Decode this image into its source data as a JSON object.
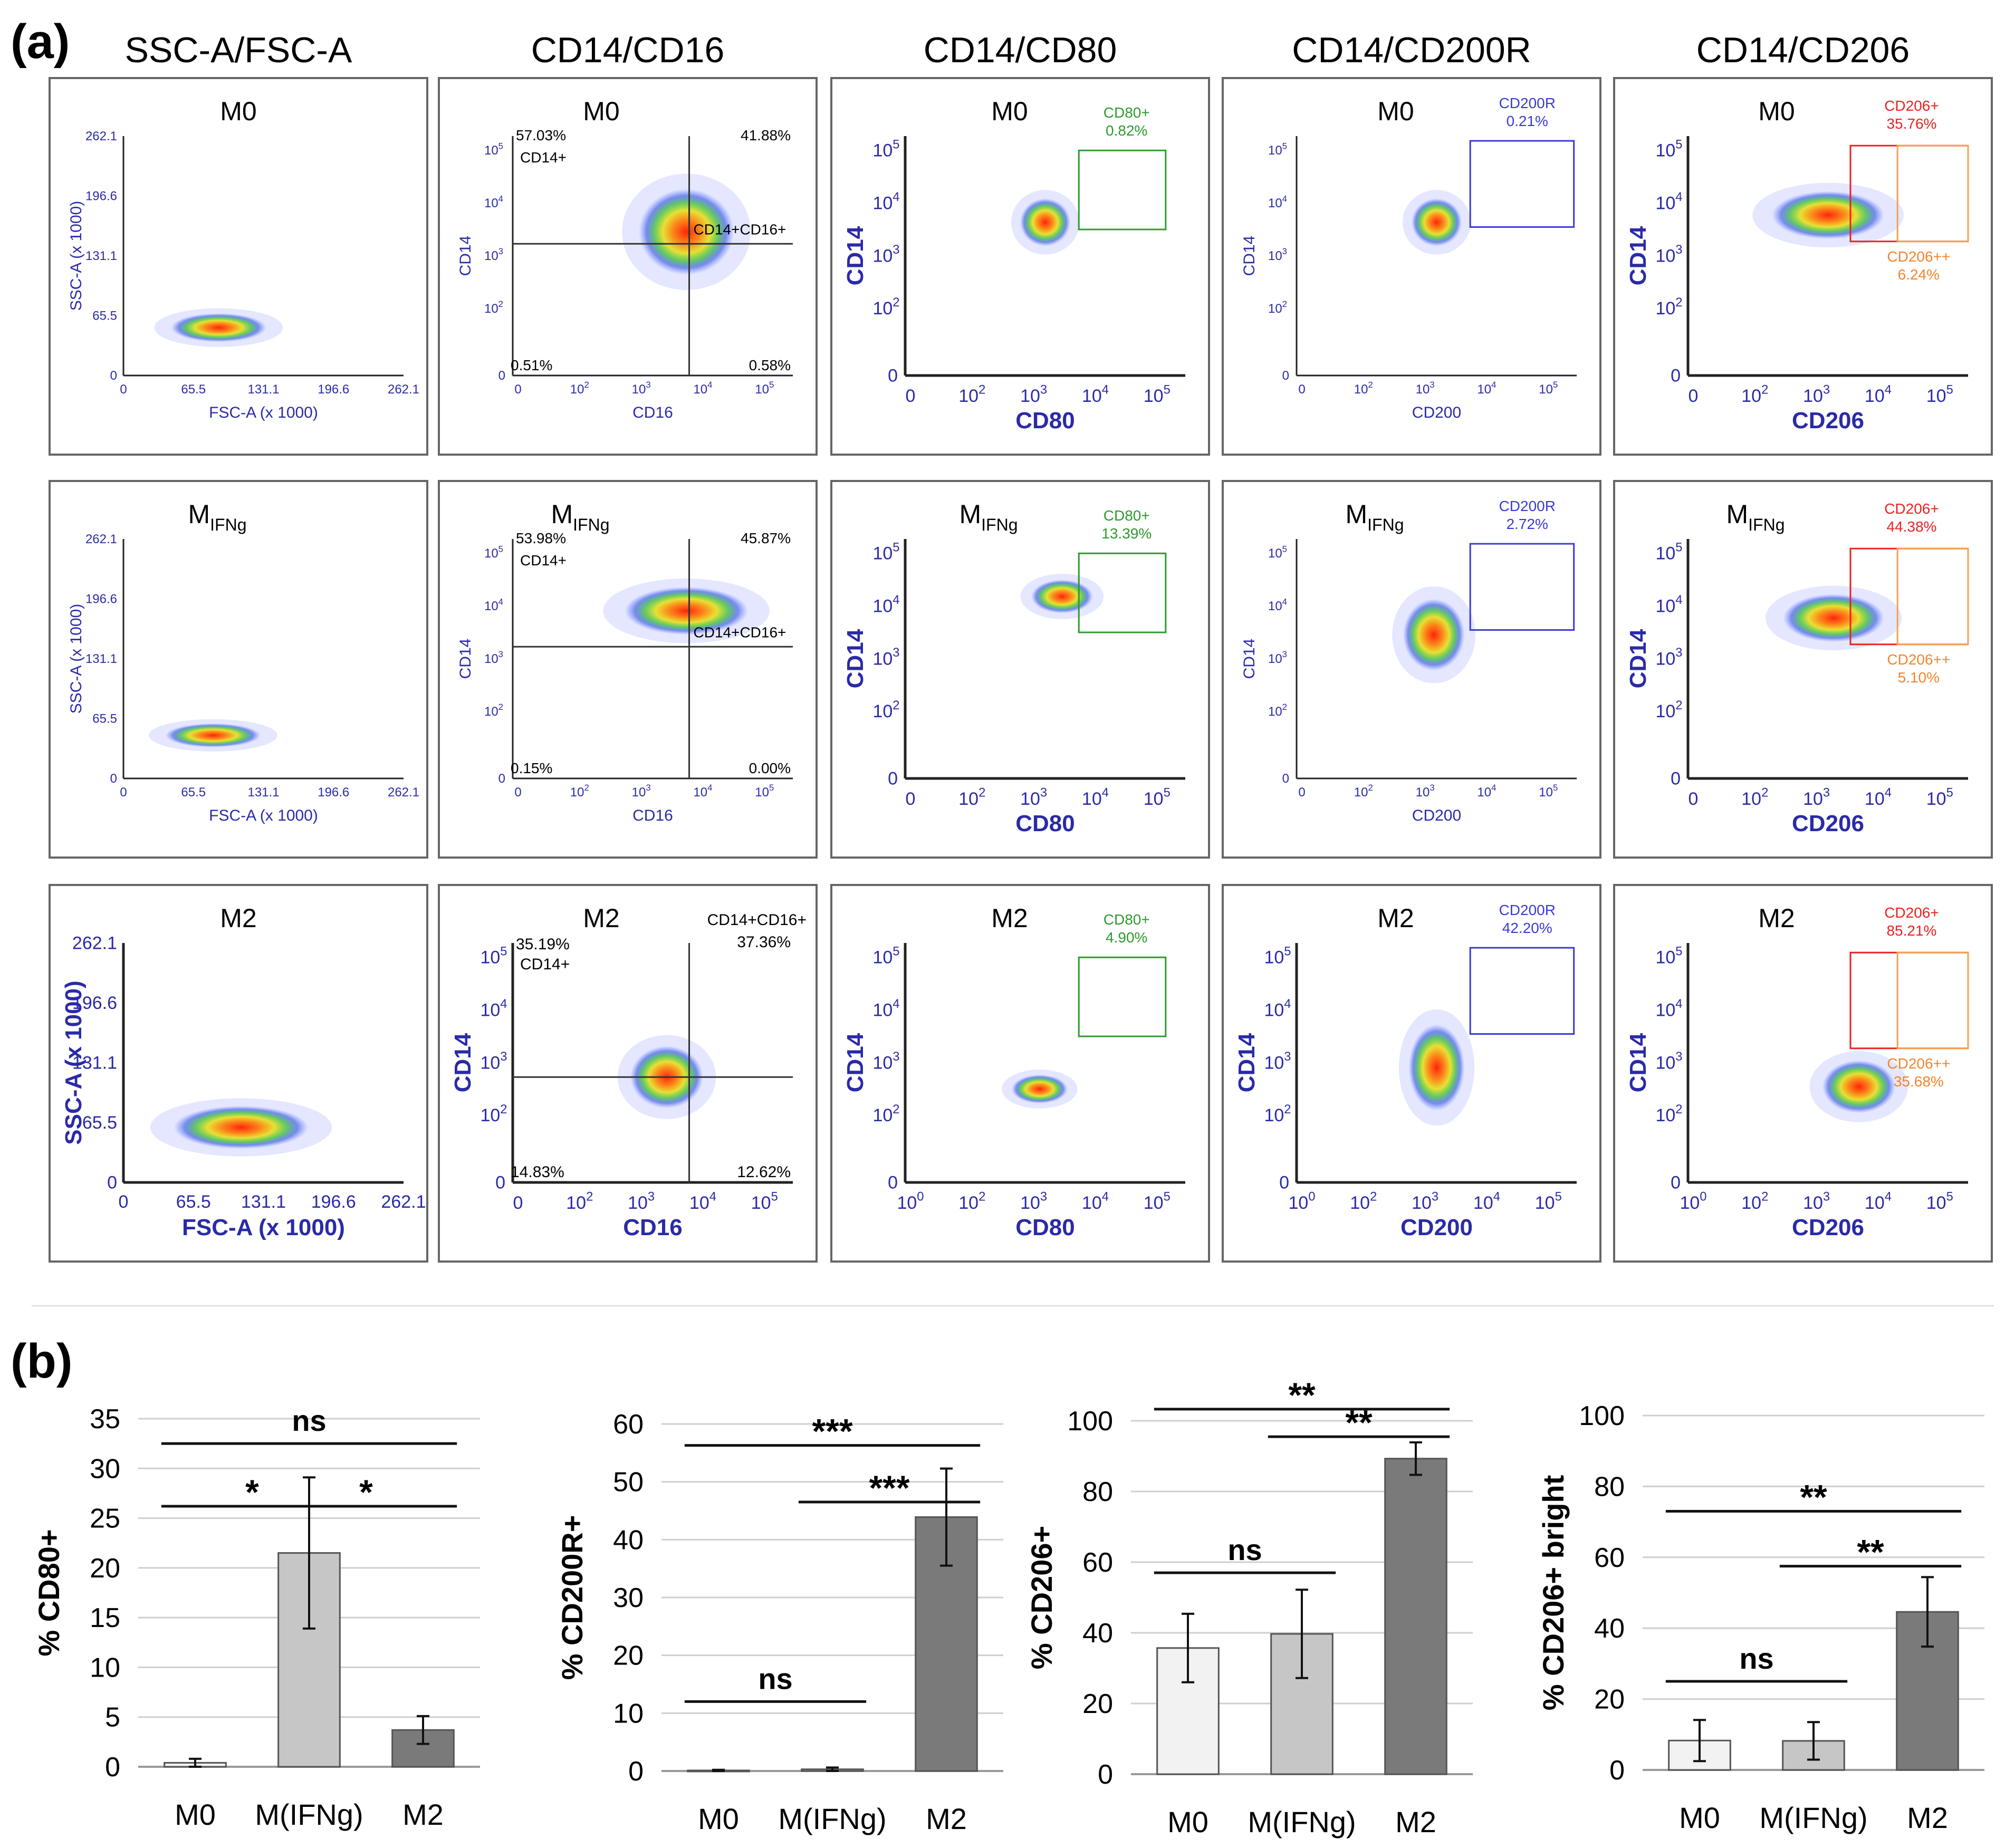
{
  "figure": {
    "panel_a_label": "(a)",
    "panel_b_label": "(b)",
    "columns": [
      "SSC-A/FSC-A",
      "CD14/CD16",
      "CD14/CD80",
      "CD14/CD200R",
      "CD14/CD206"
    ],
    "rows": [
      {
        "title": "M0",
        "sub": ""
      },
      {
        "title": "M",
        "sub": "IFNg"
      },
      {
        "title": "M2",
        "sub": ""
      }
    ],
    "scatter_cells": [
      [
        {
          "type": "fsc",
          "bold": false,
          "xlabel": "FSC-A (x 1000)",
          "ylabel": "SSC-A (x 1000)",
          "ticks": [
            "0",
            "65.5",
            "131.1",
            "196.6",
            "262.1"
          ],
          "ytop": "262.1"
        },
        {
          "type": "cd16",
          "bold": false,
          "xlabel": "CD16",
          "ylabel": "CD14",
          "q_ul": "57.03%",
          "q_ul_name": "CD14+",
          "q_ur": "41.88%",
          "q_mid": "CD14+CD16+",
          "q_ll": "0.51%",
          "q_lr": "0.58%"
        },
        {
          "type": "gate",
          "bold": true,
          "xlabel": "CD80",
          "ylabel": "CD14",
          "gate_name": "CD80+",
          "gate_pct": "0.82%",
          "color": "#2e9a2e"
        },
        {
          "type": "gate",
          "bold": false,
          "xlabel": "CD200",
          "ylabel": "CD14",
          "gate_name": "CD200R",
          "gate_pct": "0.21%",
          "color": "#3a3ad8"
        },
        {
          "type": "cd206",
          "bold": true,
          "xlabel": "CD206",
          "ylabel": "CD14",
          "g1_name": "CD206+",
          "g1_pct": "35.76%",
          "g2_name": "CD206++",
          "g2_pct": "6.24%"
        }
      ],
      [
        {
          "type": "fsc",
          "bold": false,
          "xlabel": "FSC-A (x 1000)",
          "ylabel": "SSC-A (x 1000)",
          "ticks": [
            "0",
            "65.5",
            "131.1",
            "196.6",
            "262.1"
          ],
          "ytop": "262.1"
        },
        {
          "type": "cd16",
          "bold": false,
          "xlabel": "CD16",
          "ylabel": "CD14",
          "q_ul": "53.98%",
          "q_ul_name": "CD14+",
          "q_ur": "45.87%",
          "q_mid": "CD14+CD16+",
          "q_ll": "0.15%",
          "q_lr": "0.00%"
        },
        {
          "type": "gate",
          "bold": true,
          "xlabel": "CD80",
          "ylabel": "CD14",
          "gate_name": "CD80+",
          "gate_pct": "13.39%",
          "color": "#2e9a2e"
        },
        {
          "type": "gate",
          "bold": false,
          "xlabel": "CD200",
          "ylabel": "CD14",
          "gate_name": "CD200R",
          "gate_pct": "2.72%",
          "color": "#3a3ad8"
        },
        {
          "type": "cd206",
          "bold": true,
          "xlabel": "CD206",
          "ylabel": "CD14",
          "g1_name": "CD206+",
          "g1_pct": "44.38%",
          "g2_name": "CD206++",
          "g2_pct": "5.10%"
        }
      ],
      [
        {
          "type": "fsc",
          "bold": true,
          "xlabel": "FSC-A (x 1000)",
          "ylabel": "SSC-A (x 1000)",
          "ticks": [
            "0",
            "65.5",
            "131.1",
            "196.6",
            "262.1"
          ],
          "ytop": "262.1"
        },
        {
          "type": "cd16",
          "bold": true,
          "xlabel": "CD16",
          "ylabel": "CD14",
          "q_ul": "35.19%",
          "q_ul_name": "CD14+",
          "q_ur": "37.36%",
          "q_mid": "CD14+CD16+",
          "q_ll": "14.83%",
          "q_lr": "12.62%"
        },
        {
          "type": "gate",
          "bold": true,
          "xlabel": "CD80",
          "ylabel": "CD14",
          "gate_name": "CD80+",
          "gate_pct": "4.90%",
          "color": "#2e9a2e"
        },
        {
          "type": "gate",
          "bold": true,
          "xlabel": "CD200",
          "ylabel": "CD14",
          "gate_name": "CD200R",
          "gate_pct": "42.20%",
          "color": "#3a3ad8"
        },
        {
          "type": "cd206",
          "bold": true,
          "xlabel": "CD206",
          "ylabel": "CD14",
          "g1_name": "CD206+",
          "g1_pct": "85.21%",
          "g2_name": "CD206++",
          "g2_pct": "35.68%"
        }
      ]
    ],
    "log_ticks": {
      "base": "10",
      "exps": [
        "2",
        "3",
        "4",
        "5"
      ],
      "zero": "0",
      "first_m2": "10",
      "first_m2_exp": "0"
    }
  },
  "chart_data": [
    {
      "type": "bar",
      "categories": [
        "M0",
        "M(IFNg)",
        "M2"
      ],
      "values": [
        0.4,
        21.5,
        3.7
      ],
      "errors": [
        0.4,
        7.6,
        1.4
      ],
      "ylabel": "% CD80+",
      "ylim": [
        0,
        35
      ],
      "yticks": [
        "0",
        "5",
        "10",
        "15",
        "20",
        "25",
        "30",
        "35"
      ],
      "colors": [
        "#f2f2f2",
        "#c6c6c6",
        "#7a7a7a"
      ],
      "brackets": [
        {
          "from": 0,
          "to": 2,
          "label": "ns",
          "y": 32.5
        },
        {
          "from": 0,
          "to": 1,
          "label": "*",
          "y": 26.2
        },
        {
          "from": 1,
          "to": 2,
          "label": "*",
          "y": 26.2
        }
      ]
    },
    {
      "type": "bar",
      "categories": [
        "M0",
        "M(IFNg)",
        "M2"
      ],
      "values": [
        0.1,
        0.3,
        43.9
      ],
      "errors": [
        0.1,
        0.3,
        8.4
      ],
      "ylabel": "% CD200R+",
      "ylim": [
        0,
        60
      ],
      "yticks": [
        "0",
        "10",
        "20",
        "30",
        "40",
        "50",
        "60"
      ],
      "colors": [
        "#f2f2f2",
        "#c6c6c6",
        "#7a7a7a"
      ],
      "brackets": [
        {
          "from": 0,
          "to": 2,
          "label": "***",
          "y": 56.3
        },
        {
          "from": 1,
          "to": 2,
          "label": "***",
          "y": 46.5
        },
        {
          "from": 0,
          "to": 1,
          "label": "ns",
          "y": 12.0
        }
      ]
    },
    {
      "type": "bar",
      "categories": [
        "M0",
        "M(IFNg)",
        "M2"
      ],
      "values": [
        35.7,
        39.7,
        89.3
      ],
      "errors": [
        9.7,
        12.5,
        4.6
      ],
      "ylabel": "% CD206+",
      "ylim": [
        0,
        100
      ],
      "yticks": [
        "0",
        "20",
        "40",
        "60",
        "80",
        "100"
      ],
      "colors": [
        "#f2f2f2",
        "#c6c6c6",
        "#7a7a7a"
      ],
      "brackets": [
        {
          "from": 0,
          "to": 2,
          "label": "**",
          "y": 103.3
        },
        {
          "from": 1,
          "to": 2,
          "label": "**",
          "y": 95.5
        },
        {
          "from": 0,
          "to": 1,
          "label": "ns",
          "y": 57.0
        }
      ]
    },
    {
      "type": "bar",
      "categories": [
        "M0",
        "M(IFNg)",
        "M2"
      ],
      "values": [
        8.3,
        8.2,
        44.6
      ],
      "errors": [
        5.8,
        5.3,
        9.8
      ],
      "ylabel": "% CD206+ bright",
      "ylim": [
        0,
        100
      ],
      "yticks": [
        "0",
        "20",
        "40",
        "60",
        "80",
        "100"
      ],
      "colors": [
        "#f2f2f2",
        "#c6c6c6",
        "#7a7a7a"
      ],
      "brackets": [
        {
          "from": 0,
          "to": 2,
          "label": "**",
          "y": 73.0
        },
        {
          "from": 1,
          "to": 2,
          "label": "**",
          "y": 57.5
        },
        {
          "from": 0,
          "to": 1,
          "label": "ns",
          "y": 25.0
        }
      ]
    }
  ]
}
